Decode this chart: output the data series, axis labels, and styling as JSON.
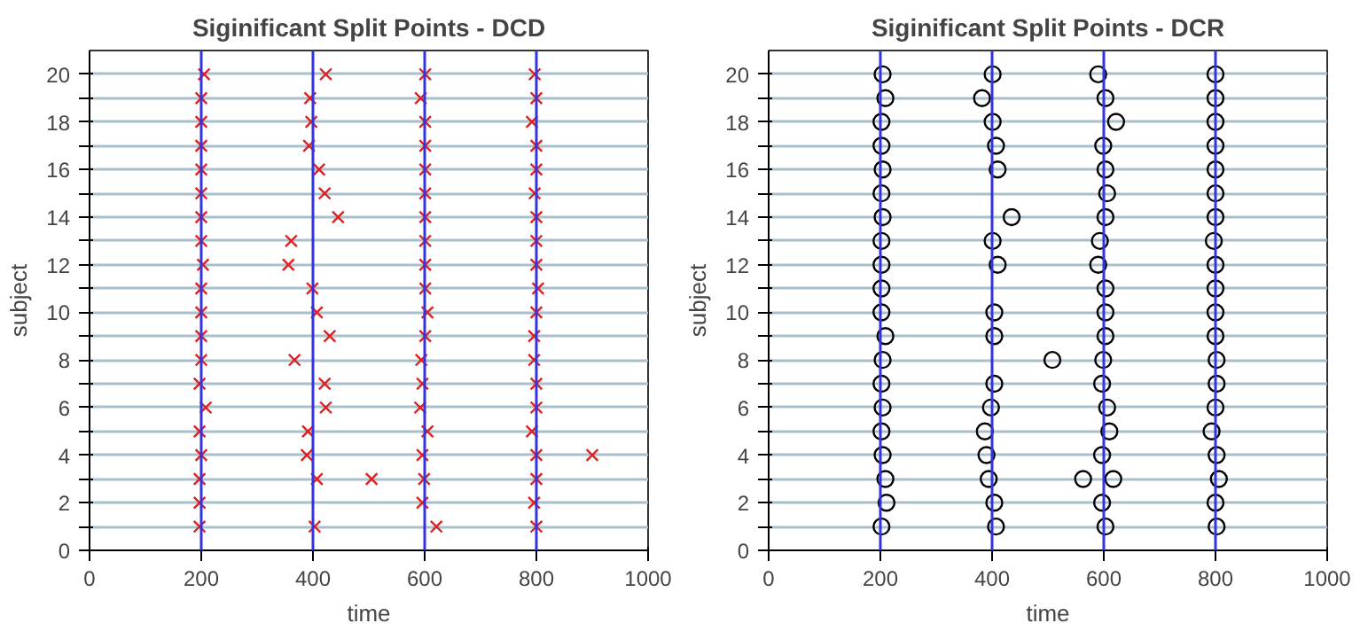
{
  "chart_data": [
    {
      "type": "scatter",
      "title": "Siginificant Split Points - DCD",
      "xlabel": "time",
      "ylabel": "subject",
      "marker": "cross",
      "grid": "y",
      "xlim": [
        0,
        1000
      ],
      "xticks": [
        0,
        200,
        400,
        600,
        800,
        1000
      ],
      "ylim": [
        0,
        21
      ],
      "yticks": [
        0,
        {
          "value": 1,
          "label": null
        },
        2,
        {
          "value": 3,
          "label": null
        },
        4,
        {
          "value": 5,
          "label": null
        },
        6,
        {
          "value": 7,
          "label": null
        },
        8,
        {
          "value": 9,
          "label": null
        },
        10,
        {
          "value": 11,
          "label": null
        },
        12,
        {
          "value": 13,
          "label": null
        },
        14,
        {
          "value": 15,
          "label": null
        },
        16,
        {
          "value": 17,
          "label": null
        },
        18,
        {
          "value": 19,
          "label": null
        },
        20
      ],
      "ref_lines": [
        {
          "axis": "x",
          "value": 200,
          "color": "#3333e0"
        },
        {
          "axis": "x",
          "value": 400,
          "color": "#3333e0"
        },
        {
          "axis": "x",
          "value": 600,
          "color": "#3333e0"
        },
        {
          "axis": "x",
          "value": 800,
          "color": "#3333e0"
        }
      ],
      "series": [
        {
          "color": "#e02020",
          "x": [
            205,
            423,
            601,
            797,
            200,
            395,
            593,
            800,
            200,
            397,
            601,
            792,
            200,
            393,
            601,
            800,
            200,
            411,
            601,
            800,
            200,
            421,
            601,
            797,
            200,
            445,
            601,
            800,
            200,
            361,
            601,
            800,
            203,
            356,
            601,
            800,
            200,
            399,
            601,
            803,
            200,
            407,
            605,
            800,
            200,
            430,
            601,
            796,
            200,
            367,
            594,
            796,
            197,
            421,
            596,
            800,
            208,
            423,
            592,
            800,
            197,
            391,
            605,
            792,
            200,
            389,
            596,
            800,
            900,
            197,
            407,
            505,
            599,
            800,
            197,
            596,
            796,
            197,
            403,
            621,
            800
          ],
          "values": [
            20,
            20,
            20,
            20,
            19,
            19,
            19,
            19,
            18,
            18,
            18,
            18,
            17,
            17,
            17,
            17,
            16,
            16,
            16,
            16,
            15,
            15,
            15,
            15,
            14,
            14,
            14,
            14,
            13,
            13,
            13,
            13,
            12,
            12,
            12,
            12,
            11,
            11,
            11,
            11,
            10,
            10,
            10,
            10,
            9,
            9,
            9,
            9,
            8,
            8,
            8,
            8,
            7,
            7,
            7,
            7,
            6,
            6,
            6,
            6,
            5,
            5,
            5,
            5,
            4,
            4,
            4,
            4,
            4,
            3,
            3,
            3,
            3,
            3,
            2,
            2,
            2,
            1,
            1,
            1,
            1
          ]
        }
      ]
    },
    {
      "type": "scatter",
      "title": "Siginificant Split Points - DCR",
      "xlabel": "time",
      "ylabel": "subject",
      "marker": "circle",
      "grid": "y",
      "xlim": [
        0,
        1000
      ],
      "xticks": [
        0,
        200,
        400,
        600,
        800,
        1000
      ],
      "ylim": [
        0,
        21
      ],
      "yticks": [
        0,
        {
          "value": 1,
          "label": null
        },
        2,
        {
          "value": 3,
          "label": null
        },
        4,
        {
          "value": 5,
          "label": null
        },
        6,
        {
          "value": 7,
          "label": null
        },
        8,
        {
          "value": 9,
          "label": null
        },
        10,
        {
          "value": 11,
          "label": null
        },
        12,
        {
          "value": 13,
          "label": null
        },
        14,
        {
          "value": 15,
          "label": null
        },
        16,
        {
          "value": 17,
          "label": null
        },
        18,
        {
          "value": 19,
          "label": null
        },
        20
      ],
      "ref_lines": [
        {
          "axis": "x",
          "value": 200,
          "color": "#3333e0"
        },
        {
          "axis": "x",
          "value": 400,
          "color": "#3333e0"
        },
        {
          "axis": "x",
          "value": 600,
          "color": "#3333e0"
        },
        {
          "axis": "x",
          "value": 800,
          "color": "#3333e0"
        }
      ],
      "series": [
        {
          "color": "#000000",
          "x": [
            204,
            401,
            590,
            800,
            209,
            382,
            603,
            800,
            202,
            401,
            622,
            800,
            202,
            407,
            599,
            800,
            204,
            410,
            603,
            800,
            202,
            606,
            800,
            204,
            435,
            603,
            800,
            202,
            401,
            593,
            797,
            202,
            410,
            590,
            800,
            202,
            603,
            800,
            202,
            404,
            603,
            800,
            209,
            404,
            603,
            800,
            204,
            508,
            599,
            802,
            202,
            404,
            597,
            802,
            204,
            398,
            606,
            800,
            202,
            387,
            610,
            793,
            204,
            390,
            597,
            802,
            209,
            394,
            563,
            617,
            806,
            211,
            404,
            597,
            800,
            202,
            407,
            603,
            802
          ],
          "values": [
            20,
            20,
            20,
            20,
            19,
            19,
            19,
            19,
            18,
            18,
            18,
            18,
            17,
            17,
            17,
            17,
            16,
            16,
            16,
            16,
            15,
            15,
            15,
            14,
            14,
            14,
            14,
            13,
            13,
            13,
            13,
            12,
            12,
            12,
            12,
            11,
            11,
            11,
            10,
            10,
            10,
            10,
            9,
            9,
            9,
            9,
            8,
            8,
            8,
            8,
            7,
            7,
            7,
            7,
            6,
            6,
            6,
            6,
            5,
            5,
            5,
            5,
            4,
            4,
            4,
            4,
            3,
            3,
            3,
            3,
            3,
            2,
            2,
            2,
            2,
            1,
            1,
            1,
            1
          ]
        }
      ]
    }
  ]
}
